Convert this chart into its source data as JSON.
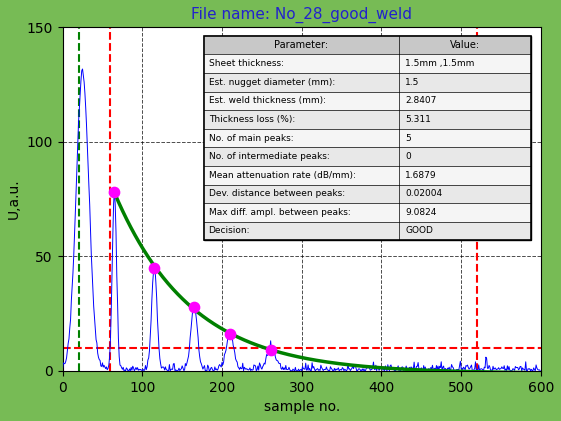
{
  "title": "File name: No_28_good_weld",
  "xlabel": "sample no.",
  "ylabel": "U,a.u.",
  "xlim": [
    0,
    600
  ],
  "ylim": [
    0,
    150
  ],
  "bg_color": "#77bb55",
  "plot_bg_color": "#ffffff",
  "title_color": "#2222cc",
  "axis_label_color": "#000000",
  "green_vline": 20,
  "red_vlines": [
    60,
    520
  ],
  "red_hline": 10,
  "peaks_x": [
    65,
    115,
    165,
    210,
    262
  ],
  "peaks_y": [
    78,
    45,
    28,
    16,
    9
  ],
  "table_params": [
    "Parameter:",
    "Sheet thickness:",
    "Est. nugget diameter (mm):",
    "Est. weld thickness (mm):",
    "Thickness loss (%):",
    "No. of main peaks:",
    "No. of intermediate peaks:",
    "Mean attenuation rate (dB/mm):",
    "Dev. distance between peaks:",
    "Max diff. ampl. between peaks:",
    "Decision:"
  ],
  "table_values": [
    "Value:",
    "1.5mm ,1.5mm",
    "1.5",
    "2.8407",
    "5.311",
    "5",
    "0",
    "1.6879",
    "0.02004",
    "9.0824",
    "GOOD"
  ],
  "xticks": [
    0,
    100,
    200,
    300,
    400,
    500,
    600
  ],
  "yticks": [
    0,
    50,
    100,
    150
  ]
}
